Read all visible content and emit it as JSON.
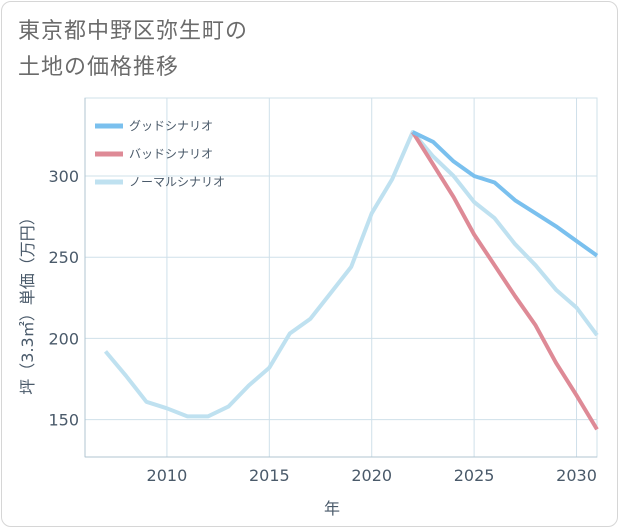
{
  "title": {
    "line1": "東京都中野区弥生町の",
    "line2": "土地の価格推移"
  },
  "colors": {
    "good": "#7ac0ee",
    "bad": "#de8a96",
    "normal": "#bfe1f0",
    "grid": "#cfe0ea",
    "axis": "#4a5a6a"
  },
  "chart_data": {
    "type": "line",
    "title": "東京都中野区弥生町の土地の価格推移",
    "xlabel": "年",
    "ylabel": "坪（3.3㎡）単価（万円）",
    "xlim": [
      2006,
      2031
    ],
    "ylim": [
      127,
      348
    ],
    "x_ticks": [
      2010,
      2015,
      2020,
      2025,
      2030
    ],
    "y_ticks": [
      150,
      200,
      250,
      300
    ],
    "grid": true,
    "legend_position": "top-left",
    "series": [
      {
        "name": "グッドシナリオ",
        "color_key": "good",
        "x": [
          2022,
          2023,
          2024,
          2025,
          2026,
          2027,
          2028,
          2029,
          2030,
          2031
        ],
        "y": [
          327,
          321,
          309,
          300,
          296,
          285,
          277,
          269,
          260,
          251
        ]
      },
      {
        "name": "バッドシナリオ",
        "color_key": "bad",
        "x": [
          2022,
          2023,
          2024,
          2025,
          2026,
          2027,
          2028,
          2029,
          2030,
          2031
        ],
        "y": [
          327,
          307,
          287,
          264,
          245,
          226,
          208,
          185,
          165,
          144
        ]
      },
      {
        "name": "ノーマルシナリオ",
        "color_key": "normal",
        "x": [
          2007,
          2008,
          2009,
          2010,
          2011,
          2012,
          2013,
          2014,
          2015,
          2016,
          2017,
          2018,
          2019,
          2020,
          2021,
          2022,
          2023,
          2024,
          2025,
          2026,
          2027,
          2028,
          2029,
          2030,
          2031
        ],
        "y": [
          192,
          177,
          161,
          157,
          152,
          152,
          158,
          171,
          182,
          203,
          212,
          228,
          244,
          277,
          298,
          327,
          312,
          300,
          284,
          274,
          258,
          245,
          230,
          219,
          202
        ]
      }
    ]
  }
}
